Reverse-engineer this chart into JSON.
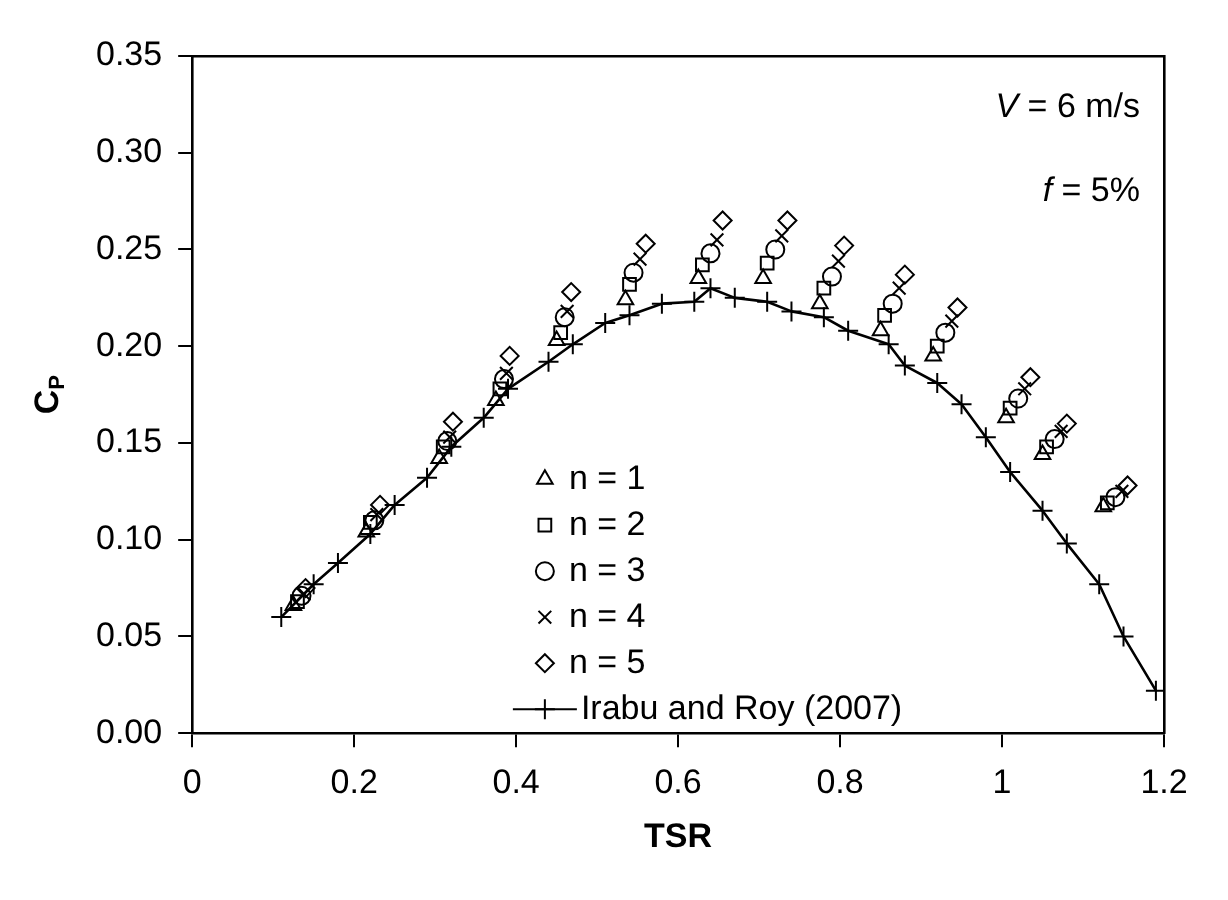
{
  "chart_data": {
    "type": "scatter",
    "xlabel": "TSR",
    "ylabel": "C$_{P}$",
    "xlim": [
      0,
      1.2
    ],
    "ylim": [
      0,
      0.35
    ],
    "xticks": [
      0,
      0.2,
      0.4,
      0.6,
      0.8,
      1,
      1.2
    ],
    "yticks": [
      {
        "value": 0,
        "label": "0.00"
      },
      0.05,
      {
        "value": 0.1,
        "label": "0.10"
      },
      0.15,
      {
        "value": 0.2,
        "label": "0.20"
      },
      0.25,
      {
        "value": 0.3,
        "label": "0.30"
      },
      0.35
    ],
    "grid": false,
    "legend": "bottom",
    "annotations": [
      "V = 6 m/s",
      "f = 5%"
    ],
    "series": [
      {
        "name": "n = 1",
        "color": "#000000",
        "marker": "triangle",
        "x": [
          0.125,
          0.215,
          0.305,
          0.375,
          0.45,
          0.535,
          0.625,
          0.705,
          0.775,
          0.85,
          0.915,
          1.005,
          1.05,
          1.125
        ],
        "values": [
          0.066,
          0.104,
          0.142,
          0.172,
          0.203,
          0.224,
          0.235,
          0.235,
          0.222,
          0.208,
          0.195,
          0.163,
          0.144,
          0.117
        ]
      },
      {
        "name": "n = 2",
        "color": "#000000",
        "marker": "square",
        "x": [
          0.13,
          0.22,
          0.31,
          0.38,
          0.455,
          0.54,
          0.63,
          0.71,
          0.78,
          0.855,
          0.92,
          1.01,
          1.055,
          1.13
        ],
        "values": [
          0.068,
          0.109,
          0.148,
          0.178,
          0.207,
          0.232,
          0.242,
          0.243,
          0.23,
          0.216,
          0.2,
          0.168,
          0.148,
          0.119
        ]
      },
      {
        "name": "n = 3",
        "color": "#000000",
        "marker": "circle",
        "x": [
          0.135,
          0.225,
          0.315,
          0.385,
          0.46,
          0.545,
          0.64,
          0.72,
          0.79,
          0.865,
          0.93,
          1.02,
          1.065,
          1.14
        ],
        "values": [
          0.071,
          0.11,
          0.151,
          0.183,
          0.215,
          0.238,
          0.248,
          0.25,
          0.236,
          0.222,
          0.207,
          0.173,
          0.152,
          0.122
        ]
      },
      {
        "name": "n = 4",
        "color": "#000000",
        "marker": "cross",
        "x": [
          0.138,
          0.228,
          0.318,
          0.388,
          0.463,
          0.553,
          0.648,
          0.728,
          0.798,
          0.873,
          0.938,
          1.028,
          1.073,
          1.148
        ],
        "values": [
          0.072,
          0.113,
          0.153,
          0.186,
          0.218,
          0.245,
          0.255,
          0.257,
          0.244,
          0.23,
          0.213,
          0.178,
          0.156,
          0.125
        ]
      },
      {
        "name": "n = 5",
        "color": "#000000",
        "marker": "diamond",
        "x": [
          0.14,
          0.232,
          0.322,
          0.392,
          0.468,
          0.56,
          0.655,
          0.735,
          0.805,
          0.88,
          0.945,
          1.035,
          1.08,
          1.155
        ],
        "values": [
          0.075,
          0.118,
          0.161,
          0.195,
          0.228,
          0.253,
          0.265,
          0.265,
          0.252,
          0.237,
          0.22,
          0.184,
          0.16,
          0.128
        ]
      },
      {
        "name": "Irabu and Roy (2007)",
        "type": "line",
        "color": "#000000",
        "marker": "cross",
        "x": [
          0.11,
          0.15,
          0.18,
          0.22,
          0.25,
          0.29,
          0.32,
          0.36,
          0.39,
          0.44,
          0.47,
          0.51,
          0.54,
          0.58,
          0.62,
          0.64,
          0.67,
          0.71,
          0.74,
          0.78,
          0.81,
          0.86,
          0.88,
          0.92,
          0.95,
          0.98,
          1.01,
          1.05,
          1.08,
          1.12,
          1.15,
          1.19
        ],
        "values": [
          0.06,
          0.077,
          0.088,
          0.103,
          0.118,
          0.132,
          0.148,
          0.163,
          0.178,
          0.192,
          0.201,
          0.212,
          0.216,
          0.222,
          0.223,
          0.23,
          0.225,
          0.223,
          0.218,
          0.215,
          0.208,
          0.201,
          0.19,
          0.181,
          0.17,
          0.153,
          0.135,
          0.115,
          0.098,
          0.077,
          0.05,
          0.022
        ]
      }
    ]
  }
}
